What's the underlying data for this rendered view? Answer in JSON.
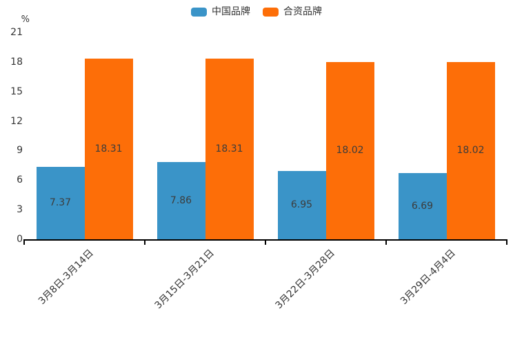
{
  "chart": {
    "background": "#ffffff",
    "axis_color": "#000000",
    "text_color": "#333333",
    "value_label_color": "#3c3c3c"
  },
  "chart_data": {
    "type": "bar",
    "title": "",
    "categories": [
      "3月8日-3月14日",
      "3月15日-3月21日",
      "3月22日-3月28日",
      "3月29日-4月4日"
    ],
    "series": [
      {
        "name": "中国品牌",
        "color": "#3A94C8",
        "values": [
          7.37,
          7.86,
          6.95,
          6.69
        ]
      },
      {
        "name": "合资品牌",
        "color": "#FD6E08",
        "values": [
          18.31,
          18.31,
          18.02,
          18.02
        ]
      }
    ],
    "xlabel": "",
    "ylabel": "%",
    "yticks": [
      0,
      3,
      6,
      9,
      12,
      15,
      18,
      21
    ],
    "ylim": [
      0,
      21
    ],
    "legend_position": "top",
    "grid": false,
    "value_labels": true,
    "value_label_format": "2dp"
  }
}
